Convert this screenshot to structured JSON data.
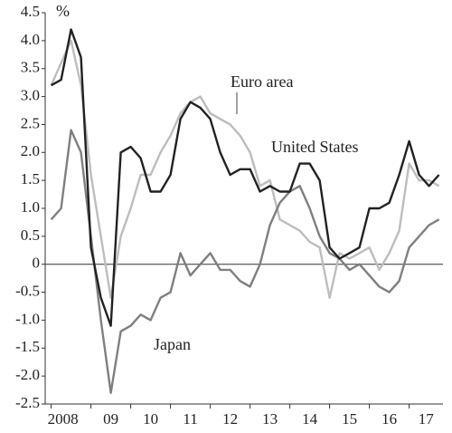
{
  "chart_data": {
    "type": "line",
    "unit_label": "%",
    "annotations": [
      "Euro area",
      "United States",
      "Japan"
    ],
    "x": [
      2008,
      2008.25,
      2008.5,
      2008.75,
      2009,
      2009.25,
      2009.5,
      2009.75,
      2010,
      2010.25,
      2010.5,
      2010.75,
      2011,
      2011.25,
      2011.5,
      2011.75,
      2012,
      2012.25,
      2012.5,
      2012.75,
      2013,
      2013.25,
      2013.5,
      2013.75,
      2014,
      2014.25,
      2014.5,
      2014.75,
      2015,
      2015.25,
      2015.5,
      2015.75,
      2016,
      2016.25,
      2016.5,
      2016.75,
      2017,
      2017.25,
      2017.5,
      2017.75
    ],
    "series": [
      {
        "name": "Euro area",
        "color": "#bdbdbd",
        "values": [
          3.2,
          3.6,
          4.0,
          3.2,
          1.6,
          0.5,
          -0.6,
          0.5,
          1.0,
          1.6,
          1.6,
          2.0,
          2.3,
          2.7,
          2.9,
          3.0,
          2.7,
          2.6,
          2.5,
          2.3,
          2.0,
          1.4,
          1.5,
          0.8,
          0.7,
          0.6,
          0.4,
          0.3,
          -0.6,
          0.2,
          0.1,
          0.2,
          0.3,
          -0.1,
          0.2,
          0.6,
          1.8,
          1.5,
          1.5,
          1.4
        ]
      },
      {
        "name": "Japan",
        "color": "#7f7f7f",
        "values": [
          0.8,
          1.0,
          2.4,
          2.0,
          0.5,
          -1.0,
          -2.3,
          -1.2,
          -1.1,
          -0.9,
          -1.0,
          -0.6,
          -0.5,
          0.2,
          -0.2,
          0.0,
          0.2,
          -0.1,
          -0.1,
          -0.3,
          -0.4,
          0.0,
          0.7,
          1.1,
          1.3,
          1.4,
          1.0,
          0.5,
          0.2,
          0.1,
          -0.1,
          0.0,
          -0.2,
          -0.4,
          -0.5,
          -0.3,
          0.3,
          0.5,
          0.7,
          0.8
        ]
      },
      {
        "name": "United States",
        "color": "#222222",
        "values": [
          3.2,
          3.3,
          4.2,
          3.7,
          0.3,
          -0.6,
          -1.1,
          2.0,
          2.1,
          1.9,
          1.3,
          1.3,
          1.6,
          2.6,
          2.9,
          2.8,
          2.6,
          2.0,
          1.6,
          1.7,
          1.7,
          1.3,
          1.4,
          1.3,
          1.3,
          1.8,
          1.8,
          1.5,
          0.3,
          0.1,
          0.2,
          0.3,
          1.0,
          1.0,
          1.1,
          1.6,
          2.2,
          1.6,
          1.4,
          1.6
        ]
      }
    ],
    "xlim": [
      2007.85,
      2017.85
    ],
    "xticks": [
      {
        "value": 2008,
        "label": "2008"
      },
      {
        "value": 2009,
        "label": "09"
      },
      {
        "value": 2010,
        "label": "10"
      },
      {
        "value": 2011,
        "label": "11"
      },
      {
        "value": 2012,
        "label": "12"
      },
      {
        "value": 2013,
        "label": "13"
      },
      {
        "value": 2014,
        "label": "14"
      },
      {
        "value": 2015,
        "label": "15"
      },
      {
        "value": 2016,
        "label": "16"
      },
      {
        "value": 2017,
        "label": "17"
      }
    ],
    "ylim": [
      -2.5,
      4.5
    ],
    "yticks": [
      {
        "value": 4.5,
        "label": "4.5"
      },
      {
        "value": 4,
        "label": "4.0"
      },
      {
        "value": 3.5,
        "label": "3.5"
      },
      {
        "value": 3,
        "label": "3.0"
      },
      {
        "value": 2.5,
        "label": "2.5"
      },
      {
        "value": 2,
        "label": "2.0"
      },
      {
        "value": 1.5,
        "label": "1.5"
      },
      {
        "value": 1,
        "label": "1.0"
      },
      {
        "value": 0.5,
        "label": "0.5"
      },
      {
        "value": 0,
        "label": "0"
      },
      {
        "value": -0.5,
        "label": "-0.5"
      },
      {
        "value": -1,
        "label": "-1.0"
      },
      {
        "value": -1.5,
        "label": "-1.5"
      },
      {
        "value": -2,
        "label": "-2.0"
      },
      {
        "value": -2.5,
        "label": "-2.5"
      }
    ],
    "grid": false
  }
}
